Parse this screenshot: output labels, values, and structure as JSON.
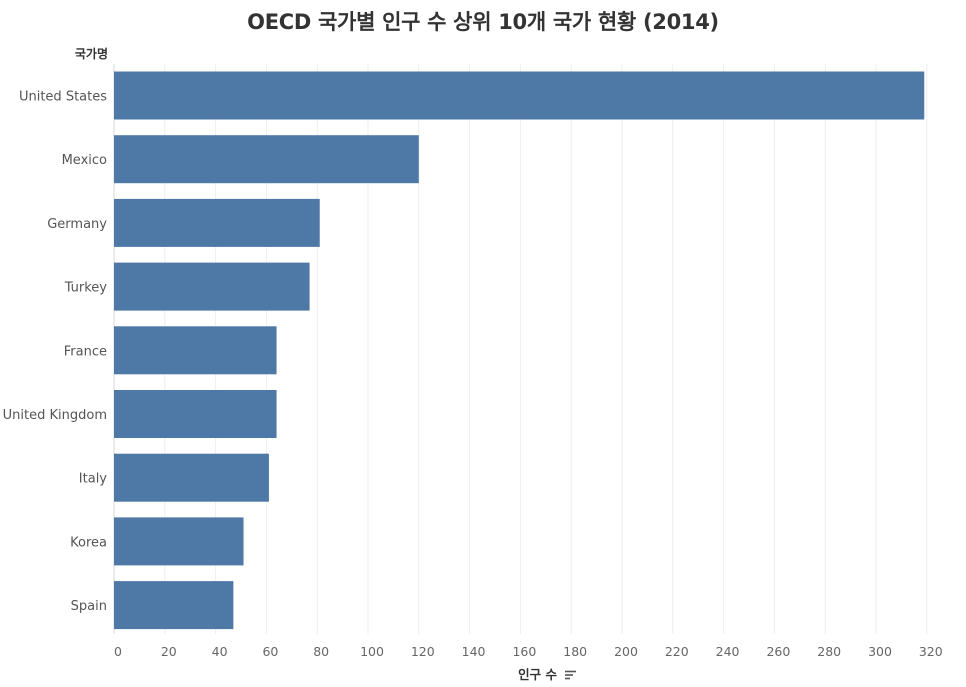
{
  "chart_data": {
    "type": "bar",
    "orientation": "horizontal",
    "title": "OECD 국가별 인구 수 상위 10개 국가 현황 (2014)",
    "ylabel": "국가명",
    "xlabel": "인구 수",
    "categories": [
      "United States",
      "Mexico",
      "Germany",
      "Turkey",
      "France",
      "United Kingdom",
      "Italy",
      "Korea",
      "Spain"
    ],
    "values": [
      319,
      120,
      81,
      77,
      64,
      64,
      61,
      51,
      47
    ],
    "xlim": [
      0,
      330
    ],
    "xticks": [
      0,
      20,
      40,
      60,
      80,
      100,
      120,
      140,
      160,
      180,
      200,
      220,
      240,
      260,
      280,
      300,
      320
    ],
    "bar_color": "#4e79a7",
    "grid": true,
    "sort_icon": "sort-descending-icon"
  }
}
